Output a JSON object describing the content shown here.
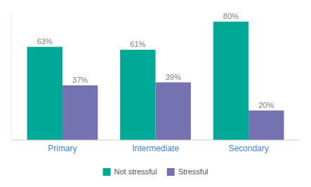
{
  "chart_data": {
    "type": "bar",
    "categories": [
      "Primary",
      "Intermediate",
      "Secondary"
    ],
    "series": [
      {
        "name": "Not stressful",
        "color": "#00A896",
        "values": [
          63,
          61,
          80
        ],
        "value_labels": [
          "63%",
          "61%",
          "80%"
        ]
      },
      {
        "name": "Stressful",
        "color": "#7472B0",
        "values": [
          37,
          39,
          20
        ],
        "value_labels": [
          "37%",
          "39%",
          "20%"
        ]
      }
    ],
    "ylim": [
      0,
      88
    ],
    "grid": false,
    "legend": "bottom",
    "data_labels": true,
    "tick_labels": "x"
  }
}
